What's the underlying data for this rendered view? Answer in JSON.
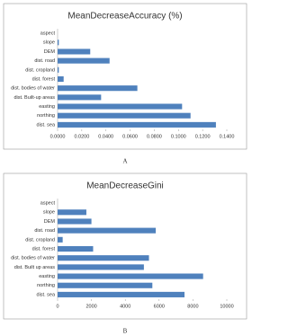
{
  "chart_data": [
    {
      "type": "barh",
      "title": "MeanDecreaseAccuracy (%)",
      "caption": "A",
      "categories": [
        "aspect",
        "slope",
        "DEM",
        "dist. road",
        "dist. cropland",
        "dist. forest",
        "dist. bodies of water",
        "dist. Built-up areas",
        "easting",
        "northing",
        "dist. sea"
      ],
      "values": [
        0,
        0.001,
        0.027,
        0.043,
        0.001,
        0.005,
        0.066,
        0.036,
        0.103,
        0.11,
        0.131
      ],
      "color": "#4f81bd",
      "xlim": [
        0,
        0.14
      ],
      "xticks": [
        {
          "value": 0,
          "label": "0.0000"
        },
        {
          "value": 0.02,
          "label": "0.0200"
        },
        {
          "value": 0.04,
          "label": "0.0400"
        },
        {
          "value": 0.06,
          "label": "0.0600"
        },
        {
          "value": 0.08,
          "label": "0.0800"
        },
        {
          "value": 0.1,
          "label": "0.1000"
        },
        {
          "value": 0.12,
          "label": "0.1200"
        },
        {
          "value": 0.14,
          "label": "0.1400"
        }
      ]
    },
    {
      "type": "barh",
      "title": "MeanDecreaseGini",
      "caption": "B",
      "categories": [
        "aspect",
        "slope",
        "DEM",
        "dist. road",
        "dist. cropland",
        "dist. forest",
        "dist. bodies of water",
        "dist. Built up areas",
        "easting",
        "northing",
        "dist. sea"
      ],
      "values": [
        0,
        1700,
        2000,
        5800,
        300,
        2100,
        5400,
        5100,
        8600,
        5600,
        7500
      ],
      "color": "#4f81bd",
      "xlim": [
        0,
        10000
      ],
      "xticks": [
        0,
        2000,
        4000,
        6000,
        8000,
        10000
      ]
    }
  ]
}
